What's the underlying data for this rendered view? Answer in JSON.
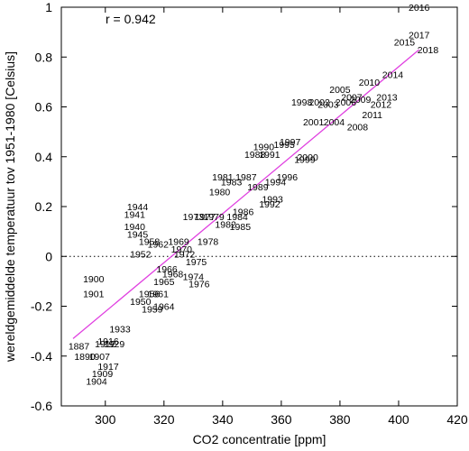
{
  "chart_data": {
    "type": "scatter",
    "xlabel": "CO2 concentratie [ppm]",
    "ylabel": "wereldgemiddelde temperatuur tov 1951-1980 [Celsius]",
    "xlim": [
      285,
      420
    ],
    "ylim": [
      -0.6,
      1.0
    ],
    "xticks": [
      300,
      320,
      340,
      360,
      380,
      400,
      420
    ],
    "yticks": [
      -0.6,
      -0.4,
      -0.2,
      0,
      0.2,
      0.4,
      0.6,
      0.8,
      1
    ],
    "annotation": "r =  0.942",
    "zero_line": true,
    "grid": false,
    "fit_line": {
      "x": [
        289,
        407
      ],
      "y": [
        -0.33,
        0.83
      ],
      "color": "#e040e0"
    },
    "points": [
      {
        "label": "2016",
        "x": 407,
        "y": 1.0
      },
      {
        "label": "2017",
        "x": 407,
        "y": 0.89
      },
      {
        "label": "2015",
        "x": 402,
        "y": 0.86
      },
      {
        "label": "2018",
        "x": 410,
        "y": 0.83
      },
      {
        "label": "2014",
        "x": 398,
        "y": 0.73
      },
      {
        "label": "2010",
        "x": 390,
        "y": 0.7
      },
      {
        "label": "2005",
        "x": 380,
        "y": 0.67
      },
      {
        "label": "2013",
        "x": 396,
        "y": 0.64
      },
      {
        "label": "2007",
        "x": 384,
        "y": 0.64
      },
      {
        "label": "2009",
        "x": 387,
        "y": 0.63
      },
      {
        "label": "2006",
        "x": 382,
        "y": 0.62
      },
      {
        "label": "1998",
        "x": 367,
        "y": 0.62
      },
      {
        "label": "2002",
        "x": 373,
        "y": 0.62
      },
      {
        "label": "2012",
        "x": 394,
        "y": 0.61
      },
      {
        "label": "2003",
        "x": 376,
        "y": 0.61
      },
      {
        "label": "2011",
        "x": 391,
        "y": 0.57
      },
      {
        "label": "2001",
        "x": 371,
        "y": 0.54
      },
      {
        "label": "2004",
        "x": 378,
        "y": 0.54
      },
      {
        "label": "2008",
        "x": 386,
        "y": 0.52
      },
      {
        "label": "1997",
        "x": 363,
        "y": 0.46
      },
      {
        "label": "1990",
        "x": 354,
        "y": 0.44
      },
      {
        "label": "1995",
        "x": 361,
        "y": 0.45
      },
      {
        "label": "1988",
        "x": 351,
        "y": 0.41
      },
      {
        "label": "1991",
        "x": 356,
        "y": 0.41
      },
      {
        "label": "2000",
        "x": 369,
        "y": 0.4
      },
      {
        "label": "1999",
        "x": 368,
        "y": 0.39
      },
      {
        "label": "1981",
        "x": 340,
        "y": 0.32
      },
      {
        "label": "1987",
        "x": 348,
        "y": 0.32
      },
      {
        "label": "1996",
        "x": 362,
        "y": 0.32
      },
      {
        "label": "1983",
        "x": 343,
        "y": 0.3
      },
      {
        "label": "1994",
        "x": 358,
        "y": 0.3
      },
      {
        "label": "1989",
        "x": 352,
        "y": 0.28
      },
      {
        "label": "1980",
        "x": 339,
        "y": 0.26
      },
      {
        "label": "1993",
        "x": 357,
        "y": 0.23
      },
      {
        "label": "1992",
        "x": 356,
        "y": 0.21
      },
      {
        "label": "1944",
        "x": 311,
        "y": 0.2
      },
      {
        "label": "1986",
        "x": 347,
        "y": 0.18
      },
      {
        "label": "1941",
        "x": 310,
        "y": 0.17
      },
      {
        "label": "1973",
        "x": 330,
        "y": 0.16
      },
      {
        "label": "1977",
        "x": 334,
        "y": 0.16
      },
      {
        "label": "1979",
        "x": 337,
        "y": 0.16
      },
      {
        "label": "1984",
        "x": 345,
        "y": 0.16
      },
      {
        "label": "1982",
        "x": 341,
        "y": 0.13
      },
      {
        "label": "1985",
        "x": 346,
        "y": 0.12
      },
      {
        "label": "1940",
        "x": 310,
        "y": 0.12
      },
      {
        "label": "1945",
        "x": 311,
        "y": 0.09
      },
      {
        "label": "1969",
        "x": 325,
        "y": 0.06
      },
      {
        "label": "1978",
        "x": 335,
        "y": 0.06
      },
      {
        "label": "1958",
        "x": 315,
        "y": 0.06
      },
      {
        "label": "1962",
        "x": 318,
        "y": 0.05
      },
      {
        "label": "1970",
        "x": 326,
        "y": 0.03
      },
      {
        "label": "1972",
        "x": 327,
        "y": 0.01
      },
      {
        "label": "1952",
        "x": 312,
        "y": 0.01
      },
      {
        "label": "1975",
        "x": 331,
        "y": -0.02
      },
      {
        "label": "1966",
        "x": 321,
        "y": -0.05
      },
      {
        "label": "1974",
        "x": 330,
        "y": -0.08
      },
      {
        "label": "1968",
        "x": 323,
        "y": -0.07
      },
      {
        "label": "1976",
        "x": 332,
        "y": -0.11
      },
      {
        "label": "1965",
        "x": 320,
        "y": -0.1
      },
      {
        "label": "1900",
        "x": 296,
        "y": -0.09
      },
      {
        "label": "1901",
        "x": 296,
        "y": -0.15
      },
      {
        "label": "1961",
        "x": 318,
        "y": -0.15
      },
      {
        "label": "1956",
        "x": 315,
        "y": -0.15
      },
      {
        "label": "1964",
        "x": 320,
        "y": -0.2
      },
      {
        "label": "1950",
        "x": 312,
        "y": -0.18
      },
      {
        "label": "1959",
        "x": 316,
        "y": -0.21
      },
      {
        "label": "1933",
        "x": 305,
        "y": -0.29
      },
      {
        "label": "1929",
        "x": 303,
        "y": -0.35
      },
      {
        "label": "1916",
        "x": 301,
        "y": -0.34
      },
      {
        "label": "1912",
        "x": 300,
        "y": -0.35
      },
      {
        "label": "1887",
        "x": 291,
        "y": -0.36
      },
      {
        "label": "1890",
        "x": 293,
        "y": -0.4
      },
      {
        "label": "1907",
        "x": 298,
        "y": -0.4
      },
      {
        "label": "1917",
        "x": 301,
        "y": -0.44
      },
      {
        "label": "1909",
        "x": 299,
        "y": -0.47
      },
      {
        "label": "1904",
        "x": 297,
        "y": -0.5
      }
    ]
  }
}
